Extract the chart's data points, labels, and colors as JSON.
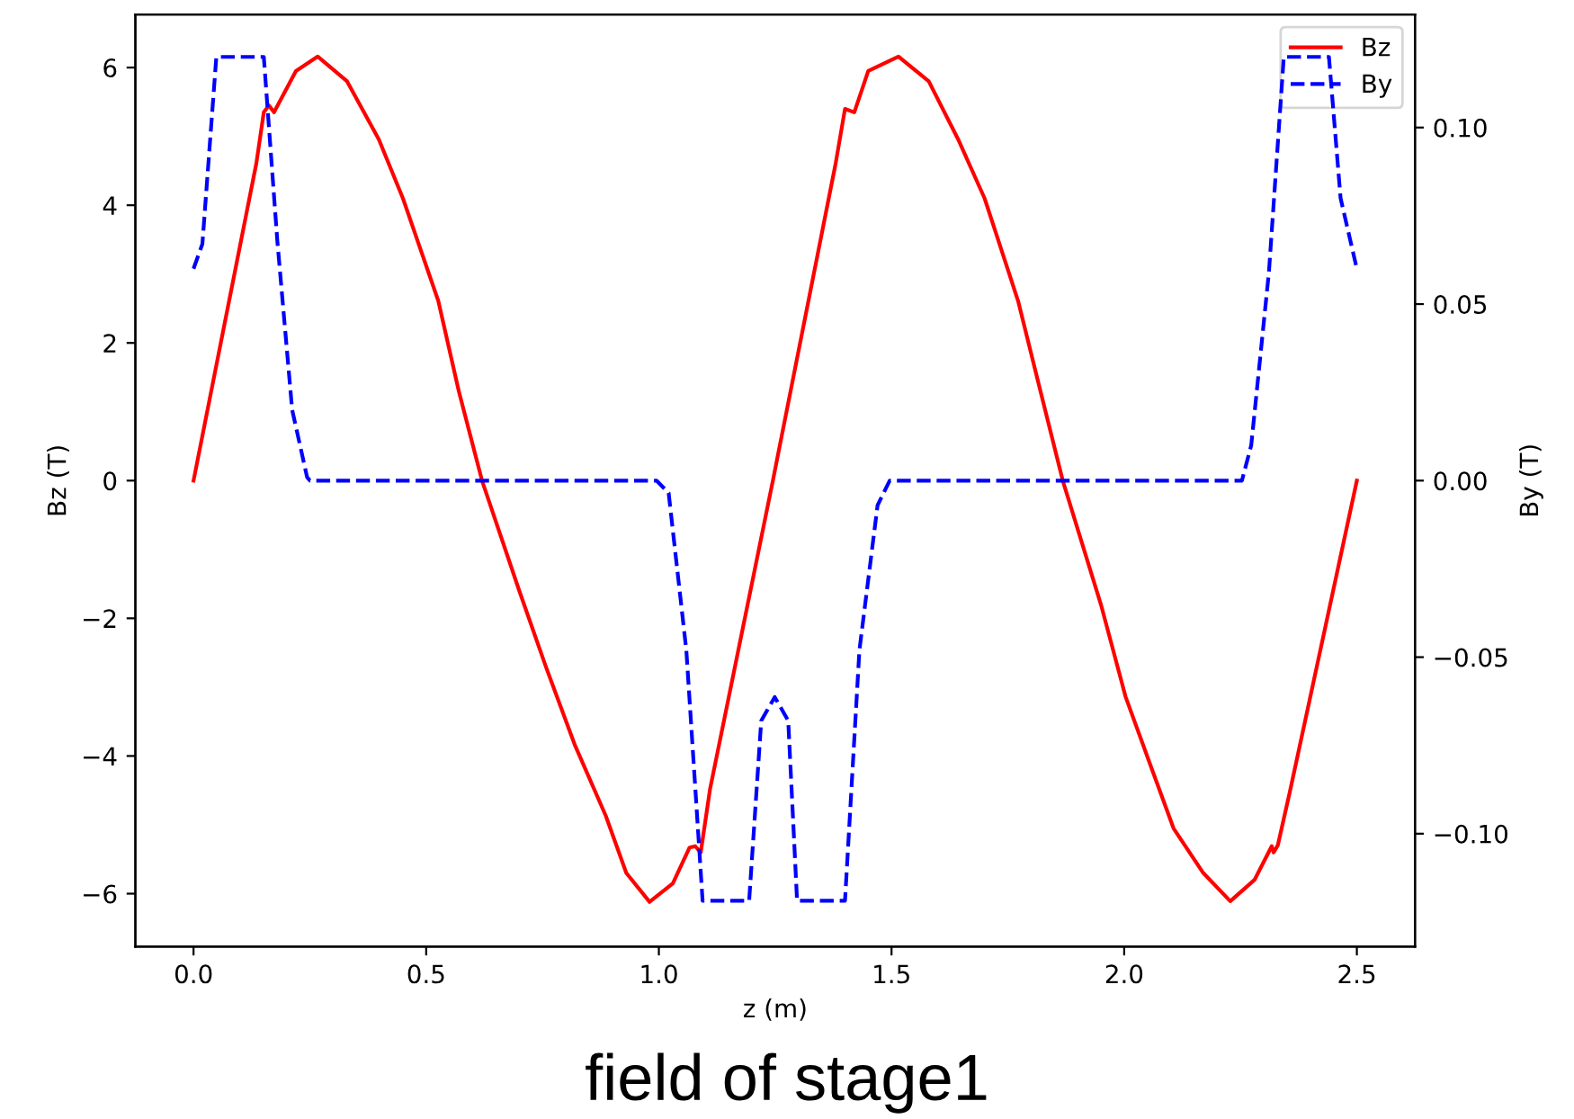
{
  "chart_data": {
    "type": "line",
    "xlabel": "z (m)",
    "ylabel": "Bz (T)",
    "y2label": "By (T)",
    "annotations": [
      "field of stage1"
    ],
    "series": [
      {
        "name": "Bz",
        "color": "#ff0000",
        "line_style": "solid",
        "x": [
          0,
          0.135,
          0.151,
          0.162,
          0.173,
          0.22,
          0.267,
          0.33,
          0.398,
          0.45,
          0.526,
          0.57,
          0.62,
          0.7,
          0.757,
          0.82,
          0.886,
          0.93,
          0.98,
          1.03,
          1.066,
          1.078,
          1.09,
          1.11,
          1.245,
          1.38,
          1.4,
          1.42,
          1.45,
          1.515,
          1.58,
          1.643,
          1.7,
          1.772,
          1.82,
          1.868,
          1.95,
          2.003,
          2.06,
          2.106,
          2.17,
          2.228,
          2.28,
          2.317,
          2.321,
          2.33,
          2.356,
          2.5
        ],
        "values": [
          0,
          4.61,
          5.35,
          5.45,
          5.35,
          5.95,
          6.16,
          5.8,
          4.96,
          4.1,
          2.61,
          1.3,
          0,
          -1.6,
          -2.7,
          -3.85,
          -4.87,
          -5.7,
          -6.12,
          -5.85,
          -5.33,
          -5.31,
          -5.4,
          -4.48,
          0,
          4.61,
          5.4,
          5.35,
          5.95,
          6.16,
          5.8,
          4.96,
          4.1,
          2.61,
          1.3,
          0,
          -1.8,
          -3.14,
          -4.2,
          -5.05,
          -5.7,
          -6.11,
          -5.8,
          -5.31,
          -5.4,
          -5.3,
          -4.52,
          0
        ]
      },
      {
        "name": "By",
        "color": "#0000ff",
        "line_style": "dashed",
        "axis": "y2",
        "x": [
          0,
          0.019,
          0.049,
          0.151,
          0.18,
          0.212,
          0.244,
          0.25,
          0.995,
          1.021,
          1.059,
          1.094,
          1.194,
          1.22,
          1.249,
          1.278,
          1.297,
          1.4,
          1.431,
          1.47,
          1.496,
          2.253,
          2.273,
          2.311,
          2.343,
          2.44,
          2.465,
          2.5
        ],
        "values": [
          0.06,
          0.067,
          0.12,
          0.12,
          0.068,
          0.02,
          0.001,
          0,
          0,
          -0.0035,
          -0.048,
          -0.119,
          -0.119,
          -0.068,
          -0.0613,
          -0.068,
          -0.119,
          -0.119,
          -0.048,
          -0.007,
          0,
          0,
          0.01,
          0.059,
          0.12,
          0.12,
          0.08,
          0.06
        ]
      }
    ],
    "xlim": [
      -0.125,
      2.625
    ],
    "xticks": [
      {
        "value": 0,
        "label": "0.0"
      },
      {
        "value": 0.5,
        "label": "0.5"
      },
      {
        "value": 1,
        "label": "1.0"
      },
      {
        "value": 1.5,
        "label": "1.5"
      },
      {
        "value": 2,
        "label": "2.0"
      },
      {
        "value": 2.5,
        "label": "2.5"
      }
    ],
    "ylim": [
      -6.77,
      6.77
    ],
    "yticks": [
      {
        "value": -6,
        "label": "−6"
      },
      {
        "value": -4,
        "label": "−4"
      },
      {
        "value": -2,
        "label": "−2"
      },
      0,
      2,
      4,
      6
    ],
    "y2lim": [
      -0.132,
      0.132
    ],
    "y2ticks": [
      {
        "value": -0.1,
        "label": "−0.10"
      },
      {
        "value": -0.05,
        "label": "−0.05"
      },
      {
        "value": 0,
        "label": "0.00"
      },
      {
        "value": 0.05,
        "label": "0.05"
      },
      {
        "value": 0.1,
        "label": "0.10"
      }
    ],
    "grid": false,
    "legend": "top right"
  }
}
